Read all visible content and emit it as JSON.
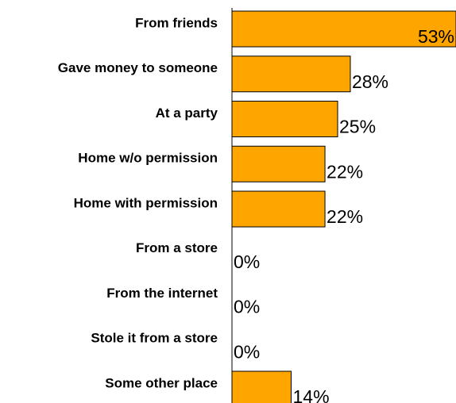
{
  "chart_data": {
    "type": "bar",
    "orientation": "horizontal",
    "categories": [
      "From friends",
      "Gave money to someone",
      "At a party",
      "Home w/o permission",
      "Home with permission",
      "From a store",
      "From the internet",
      "Stole it from a store",
      "Some other place"
    ],
    "values": [
      53,
      28,
      25,
      22,
      22,
      0,
      0,
      0,
      14
    ],
    "value_labels": [
      "53%",
      "28%",
      "25%",
      "22%",
      "22%",
      "0%",
      "0%",
      "0%",
      "14%"
    ],
    "xlim": [
      0,
      53
    ],
    "grid": false,
    "legend": "none",
    "colors": {
      "bar_fill": "#FFA500",
      "bar_stroke": "#000000",
      "axis": "#000000",
      "text": "#000000"
    }
  }
}
